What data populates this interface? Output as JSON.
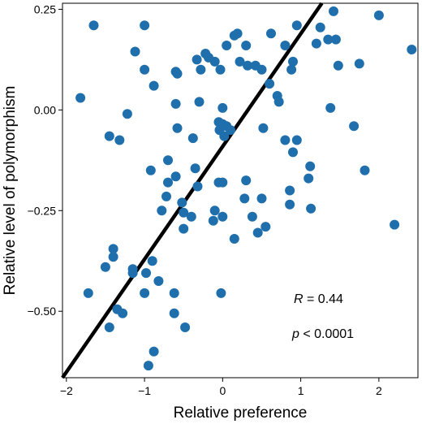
{
  "chart_data": {
    "type": "scatter",
    "xlabel": "Relative preference",
    "ylabel": "Relative level of polymorphism",
    "xlim": [
      -2.05,
      2.5
    ],
    "ylim": [
      -0.665,
      0.265
    ],
    "xticks": [
      -2,
      -1,
      0,
      1,
      2
    ],
    "yticks": [
      -0.5,
      -0.25,
      0.0,
      0.25
    ],
    "xtick_labels": [
      "−2",
      "−1",
      "0",
      "1",
      "2"
    ],
    "ytick_labels": [
      "−0.50",
      "−0.25",
      "0.00",
      "0.25"
    ],
    "grid": false,
    "point_color": "#1f6fad",
    "line_color": "#000000",
    "fit_line": {
      "x": [
        -2.05,
        1.27
      ],
      "y": [
        -0.665,
        0.265
      ]
    },
    "annotations": {
      "r_symbol": "R",
      "r_value": " = 0.44",
      "p_symbol": "p",
      "p_value": " < 0.0001"
    },
    "points": [
      {
        "x": -1.65,
        "y": 0.21
      },
      {
        "x": -1.0,
        "y": 0.21
      },
      {
        "x": -1.12,
        "y": 0.145
      },
      {
        "x": -1.0,
        "y": 0.1
      },
      {
        "x": -0.88,
        "y": 0.06
      },
      {
        "x": -1.82,
        "y": 0.03
      },
      {
        "x": -1.22,
        "y": -0.01
      },
      {
        "x": -1.32,
        "y": -0.075
      },
      {
        "x": -1.45,
        "y": -0.065
      },
      {
        "x": -0.92,
        "y": -0.15
      },
      {
        "x": -0.6,
        "y": 0.095
      },
      {
        "x": -0.58,
        "y": 0.09
      },
      {
        "x": -0.6,
        "y": 0.015
      },
      {
        "x": -0.3,
        "y": 0.02
      },
      {
        "x": -0.28,
        "y": 0.1
      },
      {
        "x": -0.33,
        "y": 0.125
      },
      {
        "x": -0.22,
        "y": 0.14
      },
      {
        "x": -0.18,
        "y": 0.13
      },
      {
        "x": -0.1,
        "y": 0.12
      },
      {
        "x": -0.03,
        "y": 0.1
      },
      {
        "x": 0.05,
        "y": 0.16
      },
      {
        "x": 0.15,
        "y": 0.185
      },
      {
        "x": 0.19,
        "y": 0.19
      },
      {
        "x": 0.3,
        "y": 0.16
      },
      {
        "x": 0.22,
        "y": 0.12
      },
      {
        "x": 0.32,
        "y": 0.11
      },
      {
        "x": 0.42,
        "y": 0.11
      },
      {
        "x": 0.5,
        "y": 0.1
      },
      {
        "x": 0.62,
        "y": 0.19
      },
      {
        "x": 0.8,
        "y": 0.16
      },
      {
        "x": 0.9,
        "y": 0.12
      },
      {
        "x": 0.95,
        "y": 0.21
      },
      {
        "x": 0.88,
        "y": 0.1
      },
      {
        "x": 1.2,
        "y": 0.165
      },
      {
        "x": 1.25,
        "y": 0.205
      },
      {
        "x": 1.35,
        "y": 0.175
      },
      {
        "x": 1.42,
        "y": 0.245
      },
      {
        "x": 1.45,
        "y": 0.175
      },
      {
        "x": 1.48,
        "y": 0.11
      },
      {
        "x": 1.75,
        "y": 0.115
      },
      {
        "x": 2.0,
        "y": 0.235
      },
      {
        "x": 2.42,
        "y": 0.15
      },
      {
        "x": 0.6,
        "y": 0.065
      },
      {
        "x": 0.7,
        "y": 0.035
      },
      {
        "x": 0.72,
        "y": 0.02
      },
      {
        "x": 1.38,
        "y": 0.005
      },
      {
        "x": -0.58,
        "y": -0.045
      },
      {
        "x": -0.38,
        "y": -0.07
      },
      {
        "x": -0.05,
        "y": -0.03
      },
      {
        "x": 0.0,
        "y": -0.035
      },
      {
        "x": 0.05,
        "y": -0.04
      },
      {
        "x": 0.0,
        "y": 0.005
      },
      {
        "x": -0.04,
        "y": -0.05
      },
      {
        "x": 0.02,
        "y": -0.065
      },
      {
        "x": 0.1,
        "y": -0.05
      },
      {
        "x": 0.52,
        "y": -0.045
      },
      {
        "x": 0.8,
        "y": -0.075
      },
      {
        "x": 0.95,
        "y": -0.075
      },
      {
        "x": 0.9,
        "y": -0.105
      },
      {
        "x": 1.12,
        "y": -0.14
      },
      {
        "x": 1.1,
        "y": -0.17
      },
      {
        "x": 1.68,
        "y": -0.04
      },
      {
        "x": 1.82,
        "y": -0.15
      },
      {
        "x": -0.7,
        "y": -0.125
      },
      {
        "x": -0.35,
        "y": -0.145
      },
      {
        "x": -0.6,
        "y": -0.165
      },
      {
        "x": -0.7,
        "y": -0.18
      },
      {
        "x": -0.72,
        "y": -0.215
      },
      {
        "x": -0.32,
        "y": -0.19
      },
      {
        "x": -0.05,
        "y": -0.18
      },
      {
        "x": 0.0,
        "y": -0.18
      },
      {
        "x": 0.3,
        "y": -0.175
      },
      {
        "x": 0.28,
        "y": -0.22
      },
      {
        "x": 0.5,
        "y": -0.22
      },
      {
        "x": 0.86,
        "y": -0.2
      },
      {
        "x": 0.86,
        "y": -0.235
      },
      {
        "x": 1.13,
        "y": -0.245
      },
      {
        "x": -0.78,
        "y": -0.25
      },
      {
        "x": -0.52,
        "y": -0.23
      },
      {
        "x": -0.5,
        "y": -0.255
      },
      {
        "x": -0.4,
        "y": -0.265
      },
      {
        "x": -0.1,
        "y": -0.25
      },
      {
        "x": -0.12,
        "y": -0.275
      },
      {
        "x": 0.0,
        "y": -0.265
      },
      {
        "x": 0.38,
        "y": -0.265
      },
      {
        "x": 0.55,
        "y": -0.29
      },
      {
        "x": 0.45,
        "y": -0.305
      },
      {
        "x": -0.5,
        "y": -0.295
      },
      {
        "x": 0.15,
        "y": -0.32
      },
      {
        "x": 2.2,
        "y": -0.285
      },
      {
        "x": -1.4,
        "y": -0.345
      },
      {
        "x": -1.4,
        "y": -0.365
      },
      {
        "x": -1.5,
        "y": -0.39
      },
      {
        "x": -1.15,
        "y": -0.395
      },
      {
        "x": -1.15,
        "y": -0.405
      },
      {
        "x": -0.98,
        "y": -0.405
      },
      {
        "x": -0.9,
        "y": -0.375
      },
      {
        "x": -0.82,
        "y": -0.425
      },
      {
        "x": -1.72,
        "y": -0.455
      },
      {
        "x": -1.0,
        "y": -0.455
      },
      {
        "x": -0.62,
        "y": -0.455
      },
      {
        "x": -0.02,
        "y": -0.455
      },
      {
        "x": -1.35,
        "y": -0.495
      },
      {
        "x": -1.28,
        "y": -0.505
      },
      {
        "x": -0.62,
        "y": -0.505
      },
      {
        "x": -0.48,
        "y": -0.54
      },
      {
        "x": -1.45,
        "y": -0.54
      },
      {
        "x": -0.88,
        "y": -0.6
      },
      {
        "x": -0.95,
        "y": -0.635
      }
    ]
  }
}
